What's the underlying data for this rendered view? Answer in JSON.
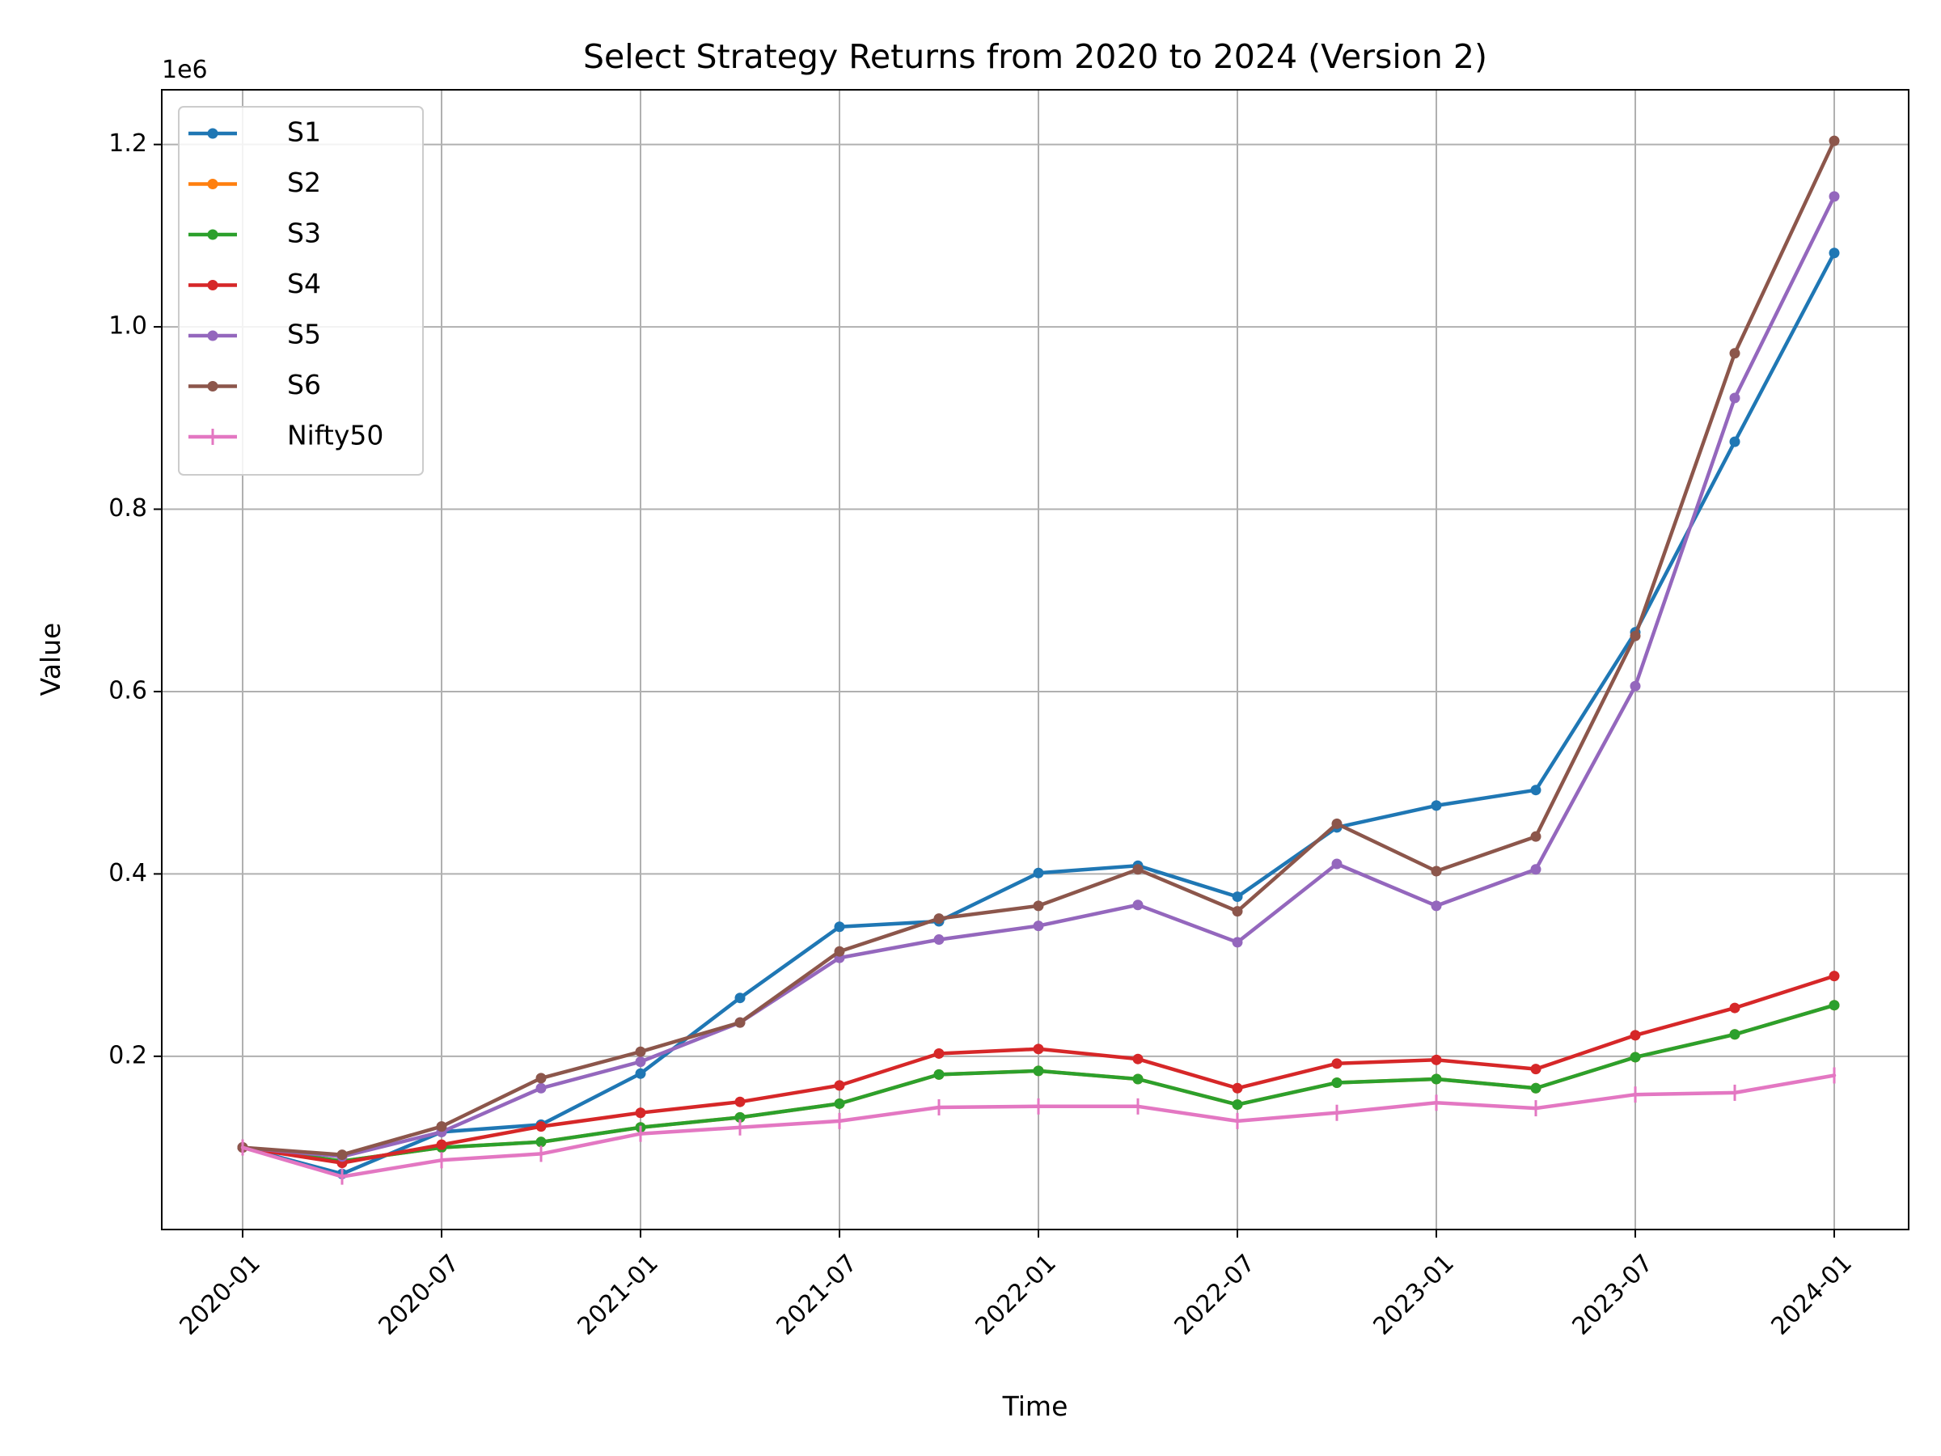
{
  "chart_data": {
    "type": "line",
    "title": "Select Strategy Returns from 2020 to 2024 (Version 2)",
    "xlabel": "Time",
    "ylabel": "Value",
    "y_offset_label": "1e6",
    "y_scale": 1000000,
    "grid": true,
    "legend_position": "top-left",
    "x": [
      "2020-01",
      "2020-04",
      "2020-07",
      "2020-10",
      "2021-01",
      "2021-04",
      "2021-07",
      "2021-10",
      "2022-01",
      "2022-04",
      "2022-07",
      "2022-10",
      "2023-01",
      "2023-04",
      "2023-07",
      "2023-10",
      "2024-01"
    ],
    "x_tick_labels": [
      "2020-01",
      "2020-07",
      "2021-01",
      "2021-07",
      "2022-01",
      "2022-07",
      "2023-01",
      "2023-07",
      "2024-01"
    ],
    "x_tick_positions": [
      0,
      2,
      4,
      6,
      8,
      10,
      12,
      14,
      16
    ],
    "y_ticks": [
      0.2,
      0.4,
      0.6,
      0.8,
      1.0,
      1.2
    ],
    "y_tick_labels": [
      "0.2",
      "0.4",
      "0.6",
      "0.8",
      "1.0",
      "1.2"
    ],
    "ylim": [
      0.01,
      1.26
    ],
    "series": [
      {
        "name": "S1",
        "color": "#1f77b4",
        "marker": "dot",
        "values": [
          0.1,
          0.071,
          0.117,
          0.125,
          0.181,
          0.264,
          0.342,
          0.348,
          0.401,
          0.409,
          0.375,
          0.451,
          0.475,
          0.492,
          0.665,
          0.874,
          1.081
        ]
      },
      {
        "name": "S2",
        "color": "#ff7f0e",
        "marker": "dot",
        "values": [
          0.1,
          0.085,
          0.1,
          0.106,
          0.122,
          0.133,
          0.148,
          0.18,
          0.184,
          0.175,
          0.147,
          0.171,
          0.175,
          0.165,
          0.199,
          0.224,
          0.256
        ]
      },
      {
        "name": "S3",
        "color": "#2ca02c",
        "marker": "dot",
        "values": [
          0.1,
          0.085,
          0.1,
          0.106,
          0.122,
          0.133,
          0.148,
          0.18,
          0.184,
          0.175,
          0.147,
          0.171,
          0.175,
          0.165,
          0.199,
          0.224,
          0.256
        ]
      },
      {
        "name": "S4",
        "color": "#d62728",
        "marker": "dot",
        "values": [
          0.1,
          0.083,
          0.103,
          0.123,
          0.138,
          0.15,
          0.168,
          0.203,
          0.208,
          0.197,
          0.165,
          0.192,
          0.196,
          0.186,
          0.223,
          0.253,
          0.288
        ]
      },
      {
        "name": "S5",
        "color": "#9467bd",
        "marker": "dot",
        "values": [
          0.1,
          0.09,
          0.117,
          0.165,
          0.194,
          0.237,
          0.308,
          0.328,
          0.343,
          0.366,
          0.325,
          0.411,
          0.365,
          0.405,
          0.606,
          0.922,
          1.143
        ]
      },
      {
        "name": "S6",
        "color": "#8c564b",
        "marker": "dot",
        "values": [
          0.1,
          0.092,
          0.123,
          0.176,
          0.205,
          0.237,
          0.315,
          0.351,
          0.365,
          0.405,
          0.359,
          0.455,
          0.403,
          0.441,
          0.661,
          0.971,
          1.204
        ]
      },
      {
        "name": "Nifty50",
        "color": "#e377c2",
        "marker": "tick",
        "values": [
          0.1,
          0.068,
          0.086,
          0.093,
          0.115,
          0.122,
          0.129,
          0.144,
          0.145,
          0.145,
          0.129,
          0.138,
          0.149,
          0.143,
          0.158,
          0.16,
          0.179
        ]
      }
    ]
  }
}
